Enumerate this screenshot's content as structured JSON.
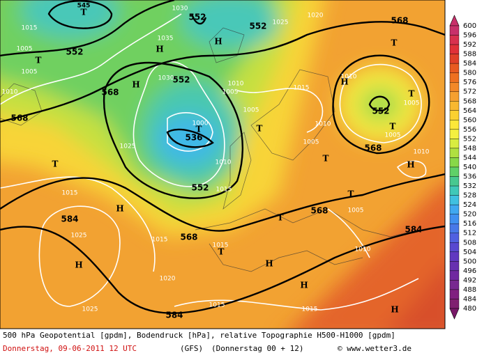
{
  "map": {
    "contour_labels": [
      "552",
      "552",
      "552",
      "552",
      "536",
      "552",
      "568",
      "568",
      "568",
      "568",
      "568",
      "568",
      "584",
      "584",
      "584",
      "552",
      "545"
    ],
    "pressure_labels": [
      "1015",
      "1005",
      "1005",
      "1010",
      "1035",
      "1030",
      "1030",
      "1025",
      "1015",
      "1025",
      "1015",
      "1015",
      "1020",
      "1025",
      "1015",
      "1015",
      "1010",
      "1005",
      "1010",
      "1005",
      "1005",
      "1010",
      "1010",
      "1005",
      "1010",
      "1015",
      "1000",
      "1010",
      "1005",
      "1015",
      "1005",
      "1025",
      "1020"
    ],
    "centers": [
      "H",
      "H",
      "H",
      "H",
      "H",
      "H",
      "H",
      "H",
      "H",
      "H",
      "T",
      "T",
      "T",
      "T",
      "T",
      "T",
      "T",
      "T",
      "T",
      "T",
      "T",
      "T"
    ]
  },
  "colorbar": {
    "labels": [
      600,
      596,
      592,
      588,
      584,
      580,
      576,
      572,
      568,
      564,
      560,
      556,
      552,
      548,
      544,
      540,
      536,
      532,
      528,
      524,
      520,
      516,
      512,
      508,
      504,
      500,
      496,
      492,
      488,
      484,
      480
    ],
    "colors": [
      "#c8306a",
      "#d8304e",
      "#e03038",
      "#e04028",
      "#e85a20",
      "#ee7020",
      "#f28828",
      "#f5a030",
      "#f8b830",
      "#fbd030",
      "#fce83a",
      "#f4f040",
      "#d8ec40",
      "#b0e040",
      "#88d848",
      "#60d068",
      "#48c890",
      "#40c8b8",
      "#40c0e0",
      "#40a8f0",
      "#4090f0",
      "#4878e8",
      "#5060e0",
      "#5848d0",
      "#6038c0",
      "#6830b0",
      "#7028a0",
      "#782890",
      "#802080",
      "#802070",
      "#781868"
    ]
  },
  "footer": {
    "line1": "500 hPa Geopotential [gpdm], Bodendruck [hPa], relative Topographie H500-H1000 [gpdm]",
    "date": "Donnerstag, 09-06-2011  12 UTC",
    "model": "(GFS)",
    "run": "(Donnerstag 00 + 12)",
    "credit": "© www.wetter3.de"
  }
}
